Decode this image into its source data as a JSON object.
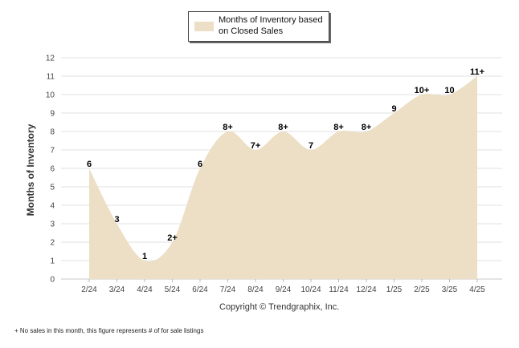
{
  "legend": {
    "label": "Months of Inventory based on Closed Sales"
  },
  "copyright": "Copyright © Trendgraphix, Inc.",
  "footnote": "+  No sales in this month, this figure represents # of for sale listings",
  "colors": {
    "area_fill": "#ecdfc6",
    "grid": "#e2e2e2",
    "axis_text": "#444444"
  },
  "chart_data": {
    "type": "area",
    "title": "",
    "xlabel": "",
    "ylabel": "Months of Inventory",
    "ylim": [
      0,
      12
    ],
    "yticks": [
      0,
      1,
      2,
      3,
      4,
      5,
      6,
      7,
      8,
      9,
      10,
      11,
      12
    ],
    "grid": true,
    "categories": [
      "2/24",
      "3/24",
      "4/24",
      "5/24",
      "6/24",
      "7/24",
      "8/24",
      "9/24",
      "10/24",
      "11/24",
      "12/24",
      "1/25",
      "2/25",
      "3/25",
      "4/25"
    ],
    "series": [
      {
        "name": "Months of Inventory based on Closed Sales",
        "values": [
          6,
          3,
          1,
          2,
          6,
          8,
          7,
          8,
          7,
          8,
          8,
          9,
          10,
          10,
          11
        ],
        "labels": [
          "6",
          "3",
          "1",
          "2+",
          "6",
          "8+",
          "7+",
          "8+",
          "7",
          "8+",
          "8+",
          "9",
          "10+",
          "10",
          "11+"
        ]
      }
    ]
  }
}
